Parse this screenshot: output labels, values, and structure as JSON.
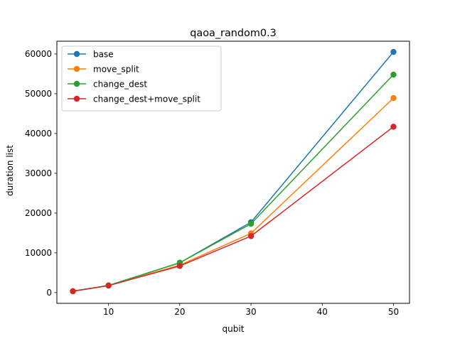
{
  "chart_data": {
    "type": "line",
    "title": "qaoa_random0.3",
    "xlabel": "qubit",
    "ylabel": "duration list",
    "x": [
      5,
      10,
      20,
      30,
      50
    ],
    "xlim": [
      2.75,
      52.25
    ],
    "ylim": [
      -2700,
      63200
    ],
    "xticks": [
      10,
      20,
      30,
      40,
      50
    ],
    "yticks": [
      0,
      10000,
      20000,
      30000,
      40000,
      50000,
      60000
    ],
    "grid": false,
    "legend_position": "top-left",
    "marker": "circle",
    "series": [
      {
        "name": "base",
        "color": "#1f77b4",
        "values": [
          350,
          1800,
          7500,
          17700,
          60500
        ]
      },
      {
        "name": "move_split",
        "color": "#ff7f0e",
        "values": [
          350,
          1800,
          6900,
          14900,
          48900
        ]
      },
      {
        "name": "change_dest",
        "color": "#2ca02c",
        "values": [
          350,
          1800,
          7500,
          17300,
          54800
        ]
      },
      {
        "name": "change_dest+move_split",
        "color": "#d62728",
        "values": [
          350,
          1750,
          6700,
          14200,
          41700
        ]
      }
    ]
  }
}
